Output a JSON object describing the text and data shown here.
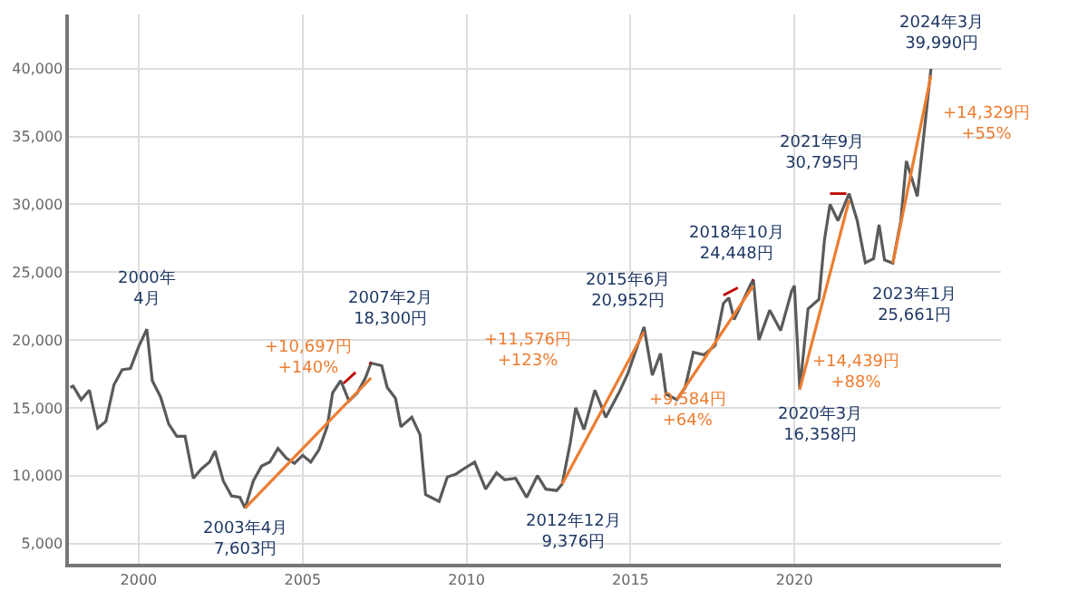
{
  "chart_data": {
    "type": "line",
    "grid": true,
    "xlim": [
      "1997-11-15",
      "2026-04-20"
    ],
    "ylim": [
      3500,
      44000
    ],
    "xticks": [
      {
        "value": "2000-01-01",
        "label": "2000"
      },
      {
        "value": "2005-01-01",
        "label": "2005"
      },
      {
        "value": "2010-01-01",
        "label": "2010"
      },
      {
        "value": "2015-01-01",
        "label": "2015"
      },
      {
        "value": "2020-01-01",
        "label": "2020"
      }
    ],
    "yticks": [
      {
        "value": 5000,
        "label": "5,000"
      },
      {
        "value": 10000,
        "label": "10,000"
      },
      {
        "value": 15000,
        "label": "15,000"
      },
      {
        "value": 20000,
        "label": "20,000"
      },
      {
        "value": 25000,
        "label": "25,000"
      },
      {
        "value": 30000,
        "label": "30,000"
      },
      {
        "value": 35000,
        "label": "35,000"
      },
      {
        "value": 40000,
        "label": "40,000"
      }
    ],
    "series": [
      {
        "color": "#5a5a5a",
        "line_style": "solid",
        "x": [
          "1997-12",
          "1998-01",
          "1998-04",
          "1998-07",
          "1998-10",
          "1999-01",
          "1999-04",
          "1999-07",
          "1999-10",
          "2000-01",
          "2000-04",
          "2000-06",
          "2000-09",
          "2000-12",
          "2001-03",
          "2001-06",
          "2001-09",
          "2001-12",
          "2002-03",
          "2002-05",
          "2002-08",
          "2002-11",
          "2003-02",
          "2003-04",
          "2003-07",
          "2003-10",
          "2004-01",
          "2004-04",
          "2004-07",
          "2004-10",
          "2005-01",
          "2005-04",
          "2005-07",
          "2005-10",
          "2005-12",
          "2006-03",
          "2006-06",
          "2006-09",
          "2006-12",
          "2007-02",
          "2007-06",
          "2007-08",
          "2007-11",
          "2008-01",
          "2008-05",
          "2008-08",
          "2008-10",
          "2009-03",
          "2009-06",
          "2009-09",
          "2009-12",
          "2010-04",
          "2010-08",
          "2010-12",
          "2011-03",
          "2011-07",
          "2011-11",
          "2012-03",
          "2012-06",
          "2012-10",
          "2012-12",
          "2013-03",
          "2013-05",
          "2013-08",
          "2013-12",
          "2014-04",
          "2014-09",
          "2014-12",
          "2015-03",
          "2015-06",
          "2015-09",
          "2015-12",
          "2016-02",
          "2016-06",
          "2016-09",
          "2016-12",
          "2017-04",
          "2017-08",
          "2017-11",
          "2018-01",
          "2018-03",
          "2018-09",
          "2018-10",
          "2018-12",
          "2019-04",
          "2019-08",
          "2019-12",
          "2020-01",
          "2020-03",
          "2020-06",
          "2020-10",
          "2020-12",
          "2021-02",
          "2021-05",
          "2021-09",
          "2021-12",
          "2022-03",
          "2022-06",
          "2022-08",
          "2022-10",
          "2023-01",
          "2023-04",
          "2023-06",
          "2023-10",
          "2024-01",
          "2024-03"
        ],
        "values": [
          16500,
          16600,
          15600,
          16300,
          13500,
          14000,
          16700,
          17800,
          17900,
          19500,
          20800,
          17000,
          15800,
          13800,
          12900,
          12900,
          9800,
          10500,
          11000,
          11800,
          9600,
          8500,
          8400,
          7603,
          9600,
          10700,
          11000,
          12000,
          11300,
          10900,
          11500,
          11000,
          11900,
          13600,
          16100,
          17000,
          15500,
          16100,
          17200,
          18300,
          18100,
          16500,
          15700,
          13600,
          14300,
          13000,
          8600,
          8100,
          9900,
          10100,
          10500,
          11000,
          9000,
          10200,
          9700,
          9800,
          8400,
          10000,
          9000,
          8900,
          9376,
          12400,
          15000,
          13400,
          16300,
          14300,
          16200,
          17500,
          19200,
          20952,
          17400,
          19000,
          16000,
          15600,
          16500,
          19100,
          18900,
          19600,
          22700,
          23100,
          21500,
          24100,
          24448,
          20000,
          22200,
          20700,
          23600,
          24000,
          16358,
          22300,
          23000,
          27400,
          30000,
          28800,
          30795,
          28800,
          25700,
          26000,
          28500,
          25900,
          25661,
          28800,
          33200,
          30600,
          36300,
          39990
        ]
      },
      {
        "color": "#ed7d31",
        "line_style": "solid",
        "x": [
          "2003-04",
          "2007-02"
        ],
        "values": [
          7603,
          17200
        ]
      },
      {
        "color": "#ed7d31",
        "line_style": "solid",
        "x": [
          "2012-12",
          "2015-06"
        ],
        "values": [
          9376,
          20600
        ]
      },
      {
        "color": "#ed7d31",
        "line_style": "solid",
        "x": [
          "2016-06",
          "2018-10"
        ],
        "values": [
          15600,
          24000
        ]
      },
      {
        "color": "#ed7d31",
        "line_style": "solid",
        "x": [
          "2020-03",
          "2021-09"
        ],
        "values": [
          16358,
          30300
        ]
      },
      {
        "color": "#ed7d31",
        "line_style": "solid",
        "x": [
          "2023-01",
          "2024-03"
        ],
        "values": [
          25661,
          39500
        ]
      },
      {
        "color": "#c00000",
        "line_style": "dashed",
        "x": [
          "2006-04",
          "2006-10",
          "2007-02"
        ],
        "values": [
          16800,
          17900,
          18300
        ]
      },
      {
        "color": "#c00000",
        "line_style": "dashed",
        "x": [
          "2017-11",
          "2018-10"
        ],
        "values": [
          23300,
          24448
        ]
      },
      {
        "color": "#c00000",
        "line_style": "dashed",
        "x": [
          "2021-02",
          "2021-09"
        ],
        "values": [
          30795,
          30795
        ]
      }
    ],
    "annotations": [
      {
        "text": "2000年\n4月",
        "x": "2000-04",
        "y": 20800
      },
      {
        "text": "2003年4月\n7,603円",
        "x": "2003-04",
        "y": 7603
      },
      {
        "text": "2007年2月\n18,300円",
        "x": "2007-02",
        "y": 18300
      },
      {
        "text": "2012年12月\n9,376円",
        "x": "2012-12",
        "y": 9376
      },
      {
        "text": "2015年6月\n20,952円",
        "x": "2015-06",
        "y": 20952
      },
      {
        "text": "2018年10月\n24,448円",
        "x": "2018-10",
        "y": 24448
      },
      {
        "text": "2020年3月\n16,358円",
        "x": "2020-03",
        "y": 16358
      },
      {
        "text": "2021年9月\n30,795円",
        "x": "2021-09",
        "y": 30795
      },
      {
        "text": "2023年1月\n25,661円",
        "x": "2023-01",
        "y": 25661
      },
      {
        "text": "2024年3月\n39,990円",
        "x": "2024-03",
        "y": 39990
      },
      "+10,697円\n+140%",
      "+11,576円\n+123%",
      "+9,584円\n+64%",
      "+14,439円\n+88%",
      "+14,329円\n+55%"
    ]
  }
}
